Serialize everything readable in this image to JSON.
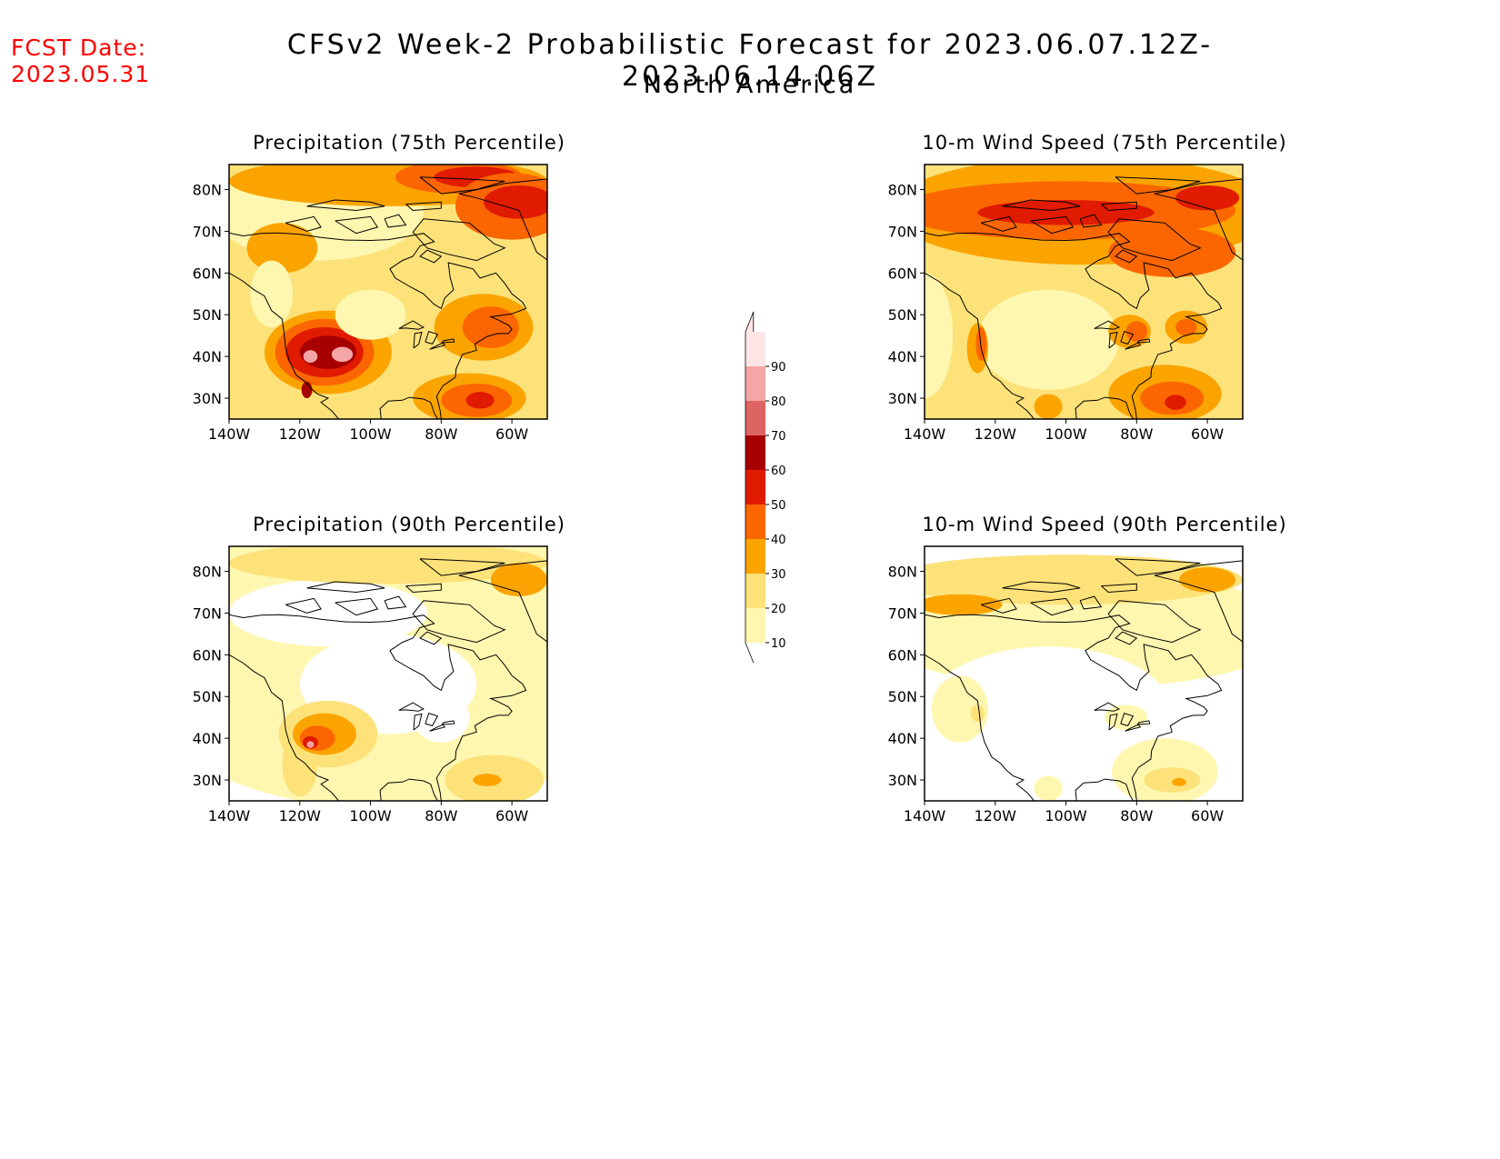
{
  "fcst_date": {
    "label": "FCST Date:",
    "value": "2023.05.31"
  },
  "header": {
    "title": "CFSv2 Week-2 Probabilistic Forecast for 2023.06.07.12Z-2023.06.14.06Z",
    "subtitle": "North America"
  },
  "colors": {
    "levels": [
      "#ffffff",
      "#fff7b0",
      "#fde27a",
      "#fba400",
      "#fb6600",
      "#e01b00",
      "#a70000",
      "#de6464",
      "#f4a6a6",
      "#ffe6e6"
    ],
    "coast": "#000000"
  },
  "colorbar": {
    "labels": [
      "10",
      "20",
      "30",
      "40",
      "50",
      "60",
      "70",
      "80",
      "90"
    ]
  },
  "axes": {
    "lat_labels": [
      "80N",
      "70N",
      "60N",
      "50N",
      "40N",
      "30N"
    ],
    "lon_labels": [
      "140W",
      "120W",
      "100W",
      "80W",
      "60W"
    ]
  },
  "panels": [
    {
      "id": "precip-75",
      "title": "Precipitation (75th Percentile)"
    },
    {
      "id": "wind-75",
      "title": "10-m Wind Speed (75th Percentile)"
    },
    {
      "id": "precip-90",
      "title": "Precipitation (90th Percentile)"
    },
    {
      "id": "wind-90",
      "title": "10-m Wind Speed (90th Percentile)"
    }
  ]
}
